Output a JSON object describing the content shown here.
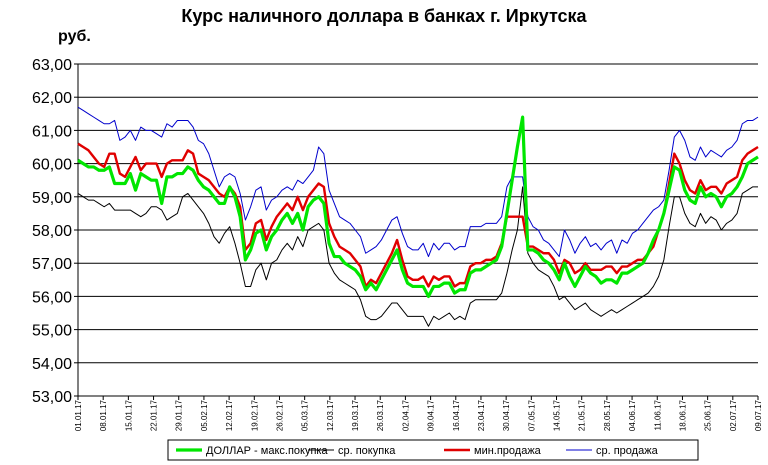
{
  "chart_data": {
    "type": "line",
    "title": "Курс наличного доллара  в банках г. Иркутска",
    "ylabel": "руб.",
    "ylim": [
      53,
      63
    ],
    "yticks": [
      "53,00",
      "54,00",
      "55,00",
      "56,00",
      "57,00",
      "58,00",
      "59,00",
      "60,00",
      "61,00",
      "62,00",
      "63,00"
    ],
    "grid": true,
    "legend_position": "bottom",
    "xtick_labels": [
      "01.01.17",
      "08.01.17",
      "15.01.17",
      "22.01.17",
      "29.01.17",
      "05.02.17",
      "12.02.17",
      "19.02.17",
      "26.02.17",
      "05.03.17",
      "12.03.17",
      "19.03.17",
      "26.03.17",
      "02.04.17",
      "09.04.17",
      "16.04.17",
      "23.04.17",
      "30.04.17",
      "07.05.17",
      "14.05.17",
      "21.05.17",
      "28.05.17",
      "04.06.17",
      "11.06.17",
      "18.06.17",
      "25.06.17",
      "02.07.17",
      "09.07.17"
    ],
    "series": [
      {
        "name": "ДОЛЛАР - макс.покупка",
        "color": "#00e600",
        "values": [
          60.1,
          60.0,
          59.9,
          59.9,
          59.8,
          59.8,
          59.9,
          59.4,
          59.4,
          59.4,
          59.7,
          59.2,
          59.7,
          59.6,
          59.5,
          59.5,
          58.8,
          59.6,
          59.6,
          59.7,
          59.7,
          59.9,
          59.8,
          59.5,
          59.3,
          59.2,
          59.0,
          58.8,
          58.8,
          59.3,
          59.0,
          58.4,
          57.1,
          57.4,
          57.9,
          58.0,
          57.4,
          57.8,
          58.0,
          58.3,
          58.5,
          58.2,
          58.5,
          58.0,
          58.7,
          58.9,
          59.0,
          58.8,
          57.6,
          57.2,
          57.2,
          57.0,
          56.9,
          56.8,
          56.6,
          56.2,
          56.4,
          56.2,
          56.5,
          56.8,
          57.1,
          57.4,
          56.8,
          56.4,
          56.3,
          56.3,
          56.3,
          56.0,
          56.3,
          56.3,
          56.4,
          56.4,
          56.1,
          56.2,
          56.2,
          56.7,
          56.8,
          56.8,
          56.9,
          57.0,
          57.1,
          57.5,
          58.5,
          59.5,
          60.5,
          61.4,
          57.4,
          57.4,
          57.3,
          57.1,
          57.0,
          56.8,
          56.5,
          57.0,
          56.6,
          56.3,
          56.6,
          56.9,
          56.7,
          56.6,
          56.4,
          56.5,
          56.5,
          56.4,
          56.7,
          56.7,
          56.8,
          56.9,
          57.0,
          57.3,
          57.7,
          58.0,
          58.5,
          59.2,
          59.9,
          59.8,
          59.2,
          58.9,
          58.8,
          59.3,
          59.0,
          59.1,
          59.0,
          58.7,
          59.0,
          59.1,
          59.3,
          59.6,
          60.0,
          60.1,
          60.2
        ]
      },
      {
        "name": "ср. покупка",
        "color": "#000000",
        "values": [
          59.1,
          59.0,
          58.9,
          58.9,
          58.8,
          58.7,
          58.8,
          58.6,
          58.6,
          58.6,
          58.6,
          58.5,
          58.4,
          58.5,
          58.7,
          58.7,
          58.6,
          58.3,
          58.4,
          58.5,
          59.0,
          59.1,
          58.9,
          58.7,
          58.5,
          58.2,
          57.8,
          57.6,
          57.9,
          58.1,
          57.6,
          57.0,
          56.3,
          56.3,
          56.8,
          57.0,
          56.5,
          57.0,
          57.1,
          57.4,
          57.6,
          57.4,
          57.8,
          57.5,
          58.0,
          58.1,
          58.2,
          58.0,
          57.0,
          56.7,
          56.5,
          56.4,
          56.3,
          56.2,
          55.9,
          55.4,
          55.3,
          55.3,
          55.4,
          55.6,
          55.8,
          55.8,
          55.6,
          55.4,
          55.4,
          55.4,
          55.4,
          55.1,
          55.4,
          55.3,
          55.4,
          55.5,
          55.3,
          55.4,
          55.3,
          55.8,
          55.9,
          55.9,
          55.9,
          55.9,
          55.9,
          56.1,
          56.7,
          57.4,
          58.0,
          59.3,
          57.3,
          57.0,
          56.8,
          56.7,
          56.6,
          56.3,
          55.9,
          56.0,
          55.8,
          55.6,
          55.7,
          55.8,
          55.6,
          55.5,
          55.4,
          55.5,
          55.6,
          55.5,
          55.6,
          55.7,
          55.8,
          55.9,
          56.0,
          56.1,
          56.3,
          56.6,
          57.1,
          58.1,
          59.0,
          59.0,
          58.5,
          58.2,
          58.1,
          58.5,
          58.2,
          58.4,
          58.3,
          58.0,
          58.2,
          58.3,
          58.5,
          59.1,
          59.2,
          59.3,
          59.3
        ]
      },
      {
        "name": "мин.продажа",
        "color": "#e00000",
        "values": [
          60.6,
          60.5,
          60.4,
          60.2,
          60.0,
          59.9,
          60.3,
          60.3,
          59.7,
          59.6,
          59.9,
          60.2,
          59.8,
          60.0,
          60.0,
          60.0,
          59.6,
          60.0,
          60.1,
          60.1,
          60.1,
          60.4,
          60.3,
          59.7,
          59.6,
          59.5,
          59.3,
          59.1,
          59.0,
          59.3,
          59.1,
          58.7,
          57.4,
          57.6,
          58.2,
          58.3,
          57.7,
          58.1,
          58.4,
          58.6,
          58.8,
          58.6,
          59.0,
          58.6,
          59.0,
          59.2,
          59.4,
          59.3,
          58.2,
          57.8,
          57.5,
          57.4,
          57.3,
          57.1,
          56.9,
          56.3,
          56.5,
          56.4,
          56.7,
          57.0,
          57.3,
          57.7,
          57.1,
          56.6,
          56.5,
          56.5,
          56.6,
          56.3,
          56.6,
          56.5,
          56.6,
          56.6,
          56.3,
          56.4,
          56.4,
          56.9,
          57.0,
          57.0,
          57.1,
          57.1,
          57.2,
          57.6,
          58.4,
          58.4,
          58.4,
          58.4,
          57.5,
          57.5,
          57.4,
          57.3,
          57.3,
          57.1,
          56.7,
          57.1,
          57.0,
          56.7,
          56.8,
          57.0,
          56.8,
          56.8,
          56.8,
          56.9,
          56.9,
          56.7,
          56.9,
          56.9,
          57.0,
          57.1,
          57.1,
          57.3,
          57.5,
          58.0,
          58.5,
          59.4,
          60.3,
          60.0,
          59.5,
          59.2,
          59.1,
          59.5,
          59.2,
          59.3,
          59.3,
          59.1,
          59.4,
          59.5,
          59.6,
          60.1,
          60.3,
          60.4,
          60.5
        ]
      },
      {
        "name": "ср. продажа",
        "color": "#0000cc",
        "values": [
          61.7,
          61.6,
          61.5,
          61.4,
          61.3,
          61.2,
          61.2,
          61.3,
          60.7,
          60.8,
          61.0,
          60.7,
          61.1,
          61.0,
          61.0,
          60.9,
          60.8,
          61.2,
          61.1,
          61.3,
          61.3,
          61.3,
          61.1,
          60.7,
          60.6,
          60.3,
          59.8,
          59.3,
          59.6,
          59.7,
          59.6,
          59.1,
          58.3,
          58.7,
          59.2,
          59.3,
          58.6,
          58.9,
          59.0,
          59.2,
          59.3,
          59.2,
          59.5,
          59.4,
          59.6,
          59.8,
          60.5,
          60.3,
          59.2,
          58.8,
          58.4,
          58.3,
          58.2,
          58.0,
          57.8,
          57.3,
          57.4,
          57.5,
          57.7,
          58.0,
          58.3,
          58.4,
          57.9,
          57.5,
          57.4,
          57.4,
          57.6,
          57.2,
          57.6,
          57.4,
          57.6,
          57.6,
          57.4,
          57.5,
          57.5,
          58.1,
          58.1,
          58.1,
          58.2,
          58.2,
          58.2,
          58.4,
          59.3,
          59.6,
          59.6,
          59.6,
          58.4,
          58.1,
          58.0,
          57.7,
          57.6,
          57.4,
          57.2,
          58.0,
          57.7,
          57.3,
          57.6,
          57.8,
          57.5,
          57.6,
          57.4,
          57.6,
          57.7,
          57.3,
          57.7,
          57.6,
          57.9,
          58.0,
          58.2,
          58.4,
          58.6,
          58.7,
          58.9,
          59.8,
          60.8,
          61.0,
          60.7,
          60.2,
          60.1,
          60.5,
          60.2,
          60.4,
          60.3,
          60.2,
          60.4,
          60.5,
          60.7,
          61.2,
          61.3,
          61.3,
          61.4
        ]
      }
    ]
  }
}
